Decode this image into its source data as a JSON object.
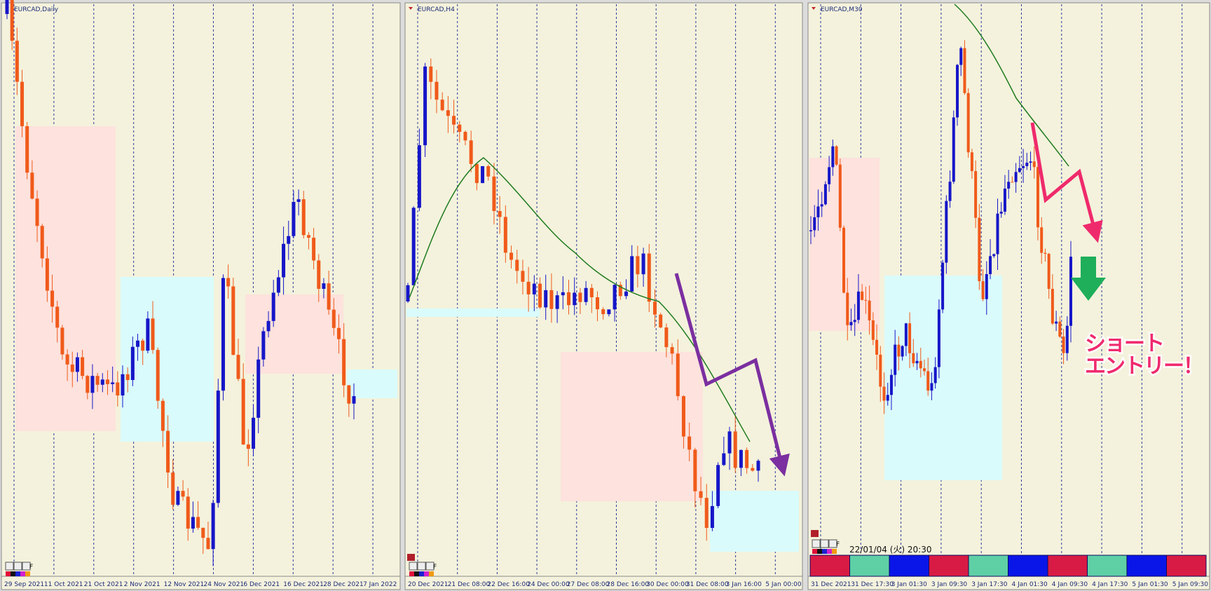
{
  "panels": [
    {
      "title": "EURCAD,Daily",
      "x_labels": [
        "29 Sep 2021",
        "11 Oct 2021",
        "21 Oct 2021",
        "2 Nov 2021",
        "12 Nov 2021",
        "24 Nov 2021",
        "6 Dec 2021",
        "16 Dec 2021",
        "28 Dec 2021",
        "7 Jan 2022"
      ]
    },
    {
      "title": "EURCAD,H4",
      "x_labels": [
        "20 Dec 2021",
        "21 Dec 08:00",
        "22 Dec 16:00",
        "24 Dec 00:00",
        "27 Dec 08:00",
        "28 Dec 16:00",
        "30 Dec 00:00",
        "31 Dec 08:00",
        "3 Jan 16:00",
        "5 Jan 00:00"
      ]
    },
    {
      "title": "EURCAD,M30",
      "x_labels": [
        "31 Dec 2021",
        "31 Dec 17:30",
        "3 Jan 01:30",
        "3 Jan 09:30",
        "3 Jan 17:30",
        "4 Jan 01:30",
        "4 Jan 09:30",
        "4 Jan 17:30",
        "5 Jan 01:30",
        "5 Jan 09:30"
      ]
    }
  ],
  "toolbar_button": "F",
  "timestamp": "22/01/04 (火) 20:30",
  "annotation": [
    "ショート",
    "エントリー！"
  ]
}
